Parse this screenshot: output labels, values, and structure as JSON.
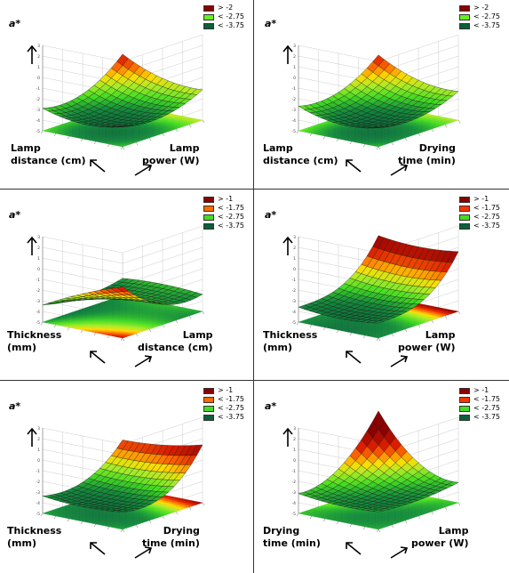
{
  "chart_data": [
    {
      "type": "surface3d",
      "zlabel": "a*",
      "xlabel": "Lamp power (W)",
      "ylabel": "Lamp distance (cm)",
      "zlim": [
        -5,
        3
      ],
      "ztick_labels": [
        "-5",
        "-4",
        "-3",
        "-2",
        "-1",
        "0",
        "1",
        "2",
        "3"
      ],
      "legend": [
        {
          "label": "> -2",
          "color": "#8b0000"
        },
        {
          "label": "< -2.75",
          "color": "#66ee22"
        },
        {
          "label": "< -3.75",
          "color": "#0c5f3b"
        }
      ],
      "surface_shape": "bowl",
      "minimum_location": "center",
      "high_region": "high lamp power edge"
    },
    {
      "type": "surface3d",
      "zlabel": "a*",
      "xlabel": "Drying time (min)",
      "ylabel": "Lamp distance (cm)",
      "zlim": [
        -5,
        3
      ],
      "ztick_labels": [
        "-5",
        "-4",
        "-3",
        "-2",
        "-1",
        "0",
        "1",
        "2",
        "3"
      ],
      "legend": [
        {
          "label": "> -2",
          "color": "#8b0000"
        },
        {
          "label": "< -2.75",
          "color": "#66ee22"
        },
        {
          "label": "< -3.75",
          "color": "#0c5f3b"
        }
      ],
      "surface_shape": "bowl",
      "minimum_location": "center",
      "high_region": "long drying time edge"
    },
    {
      "type": "surface3d",
      "zlabel": "a*",
      "xlabel": "Lamp distance (cm)",
      "ylabel": "Thickness (mm)",
      "zlim": [
        -5,
        3
      ],
      "ztick_labels": [
        "-5",
        "-4",
        "-3",
        "-2",
        "-1",
        "0",
        "1",
        "2",
        "3"
      ],
      "legend": [
        {
          "label": "> -1",
          "color": "#8b0000"
        },
        {
          "label": "< -1.75",
          "color": "#ff6a00"
        },
        {
          "label": "< -2.75",
          "color": "#44dd22"
        },
        {
          "label": "< -3.75",
          "color": "#0c5f3b"
        }
      ],
      "surface_shape": "saddle",
      "minimum_location": "center",
      "high_region": "low thickness, low distance corner"
    },
    {
      "type": "surface3d",
      "zlabel": "a*",
      "xlabel": "Lamp power (W)",
      "ylabel": "Thickness (mm)",
      "zlim": [
        -5,
        3
      ],
      "ztick_labels": [
        "-5",
        "-4",
        "-3",
        "-2",
        "-1",
        "0",
        "1",
        "2",
        "3"
      ],
      "legend": [
        {
          "label": "> -1",
          "color": "#8b0000"
        },
        {
          "label": "< -1.75",
          "color": "#ff3300"
        },
        {
          "label": "< -2.75",
          "color": "#44dd22"
        },
        {
          "label": "< -3.75",
          "color": "#0c5f3b"
        }
      ],
      "surface_shape": "bowl",
      "minimum_location": "low power side",
      "high_region": "high lamp power edge"
    },
    {
      "type": "surface3d",
      "zlabel": "a*",
      "xlabel": "Drying time (min)",
      "ylabel": "Thickness (mm)",
      "zlim": [
        -5,
        3
      ],
      "ztick_labels": [
        "-5",
        "-4",
        "-3",
        "-2",
        "-1",
        "0",
        "1",
        "2",
        "3"
      ],
      "legend": [
        {
          "label": "> -1",
          "color": "#8b0000"
        },
        {
          "label": "< -1.75",
          "color": "#ff6a00"
        },
        {
          "label": "< -2.75",
          "color": "#44dd22"
        },
        {
          "label": "< -3.75",
          "color": "#0c5f3b"
        }
      ],
      "surface_shape": "bowl",
      "minimum_location": "center",
      "high_region": "long drying time edge"
    },
    {
      "type": "surface3d",
      "zlabel": "a*",
      "xlabel": "Lamp power (W)",
      "ylabel": "Drying time (min)",
      "zlim": [
        -5,
        3
      ],
      "ztick_labels": [
        "-5",
        "-4",
        "-3",
        "-2",
        "-1",
        "0",
        "1",
        "2",
        "3"
      ],
      "legend": [
        {
          "label": "> -1",
          "color": "#8b0000"
        },
        {
          "label": "< -1.75",
          "color": "#ff3300"
        },
        {
          "label": "< -2.75",
          "color": "#44dd22"
        },
        {
          "label": "< -3.75",
          "color": "#0c5f3b"
        }
      ],
      "surface_shape": "saddle",
      "minimum_location": "center",
      "high_region": "far corner (high power, long drying time)"
    }
  ]
}
